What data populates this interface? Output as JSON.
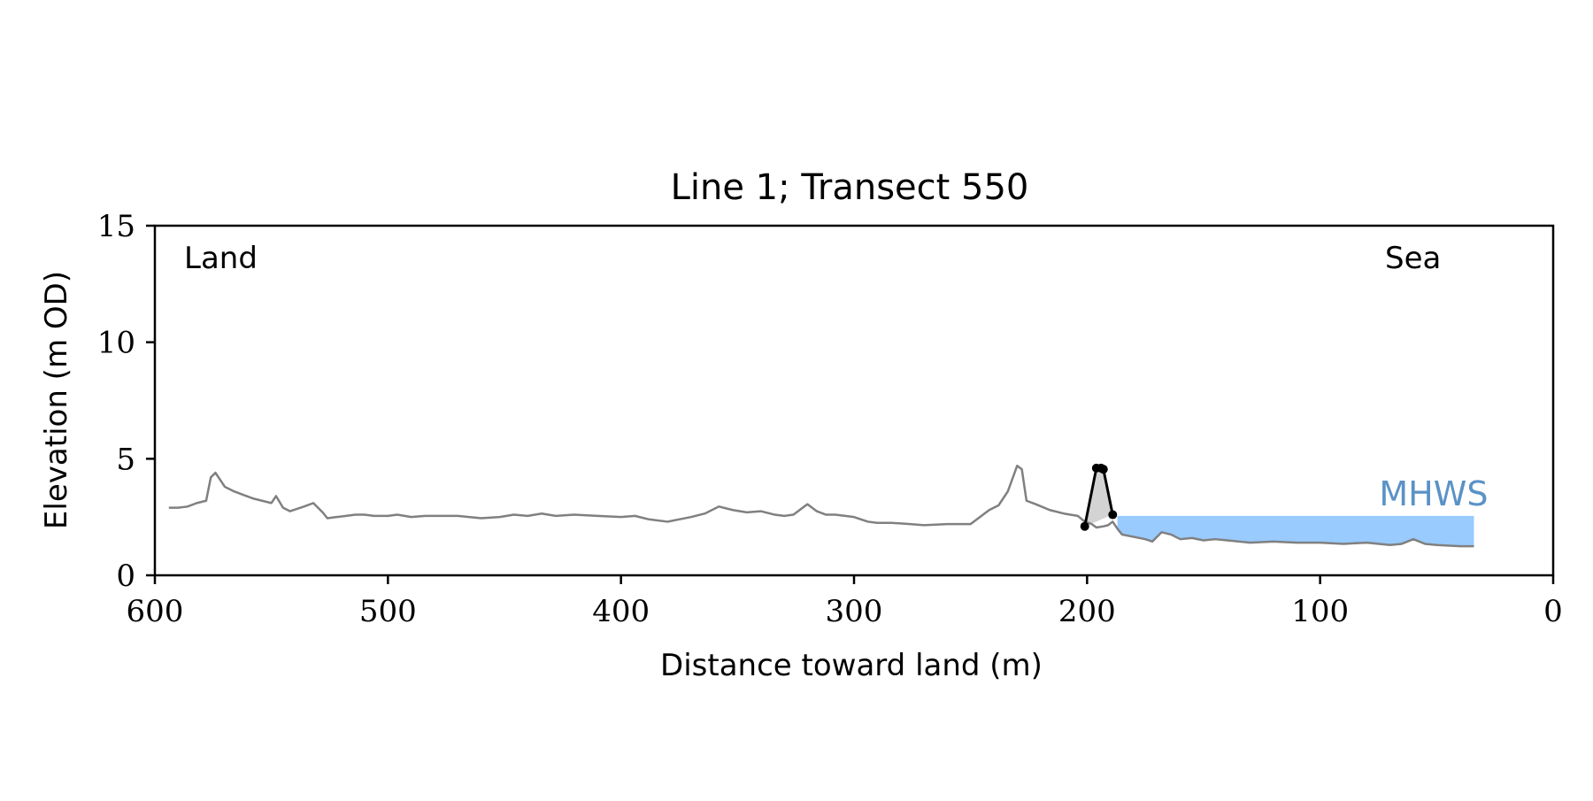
{
  "chart_data": {
    "type": "line",
    "title": "Line 1; Transect 550",
    "xlabel": "Distance toward land (m)",
    "ylabel": "Elevation (m OD)",
    "xlim": [
      600,
      0
    ],
    "ylim": [
      0,
      15
    ],
    "x_ticks": [
      600,
      500,
      400,
      300,
      200,
      100,
      0
    ],
    "y_ticks": [
      0,
      5,
      10,
      15
    ],
    "grid": false,
    "annotations": {
      "land": "Land",
      "sea": "Sea",
      "mhws": "MHWS"
    },
    "mhws": {
      "level": 2.55,
      "x_start": 187,
      "x_end": 34
    },
    "series": [
      {
        "x": [
          594,
          590,
          586,
          582,
          578,
          576,
          574,
          570,
          566,
          562,
          558,
          554,
          550,
          548,
          545,
          542,
          539,
          536,
          532,
          528,
          526,
          522,
          518,
          514,
          510,
          506,
          500,
          496,
          490,
          484,
          476,
          470,
          460,
          452,
          446,
          440,
          434,
          428,
          420,
          410,
          400,
          394,
          388,
          380,
          370,
          364,
          358,
          352,
          346,
          340,
          334,
          330,
          326,
          320,
          316,
          312,
          308,
          300,
          294,
          290,
          284,
          276,
          270,
          260,
          250,
          242,
          238,
          234,
          230,
          228,
          226,
          222,
          216,
          210,
          204,
          201,
          198,
          196,
          193,
          191,
          189,
          187,
          185,
          180,
          175,
          172,
          168,
          164,
          160,
          155,
          150,
          145,
          140,
          135,
          130,
          120,
          110,
          100,
          90,
          80,
          70,
          65,
          60,
          55,
          50,
          40,
          34
        ],
        "y": [
          2.9,
          2.9,
          2.95,
          3.1,
          3.2,
          4.2,
          4.4,
          3.8,
          3.6,
          3.45,
          3.3,
          3.2,
          3.1,
          3.4,
          2.9,
          2.75,
          2.85,
          2.95,
          3.1,
          2.7,
          2.45,
          2.5,
          2.55,
          2.6,
          2.6,
          2.55,
          2.55,
          2.6,
          2.5,
          2.55,
          2.55,
          2.55,
          2.45,
          2.5,
          2.6,
          2.55,
          2.65,
          2.55,
          2.6,
          2.55,
          2.5,
          2.55,
          2.4,
          2.3,
          2.5,
          2.65,
          2.95,
          2.8,
          2.7,
          2.75,
          2.6,
          2.55,
          2.6,
          3.05,
          2.75,
          2.6,
          2.6,
          2.5,
          2.3,
          2.25,
          2.25,
          2.2,
          2.15,
          2.2,
          2.2,
          2.8,
          3.0,
          3.6,
          4.7,
          4.55,
          3.2,
          3.05,
          2.8,
          2.65,
          2.55,
          2.3,
          2.2,
          2.05,
          2.1,
          2.15,
          2.3,
          2.0,
          1.75,
          1.65,
          1.55,
          1.45,
          1.85,
          1.75,
          1.55,
          1.6,
          1.5,
          1.55,
          1.5,
          1.45,
          1.4,
          1.45,
          1.4,
          1.4,
          1.35,
          1.4,
          1.3,
          1.35,
          1.55,
          1.35,
          1.3,
          1.25,
          1.25
        ],
        "color": "#808080"
      },
      {
        "x": [
          201,
          196,
          194,
          193,
          189
        ],
        "y": [
          2.1,
          4.6,
          4.6,
          4.55,
          2.6
        ],
        "color": "#000000",
        "fill_color": "#d3d3d3",
        "markers": true
      }
    ]
  }
}
